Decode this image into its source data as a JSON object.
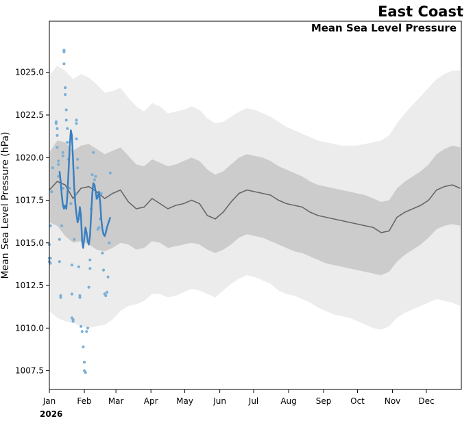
{
  "chart_data": {
    "type": "line",
    "title": "East Coast",
    "subtitle": "Mean Sea Level Pressure",
    "ylabel": "Mean Sea Level Pressure (hPa)",
    "xlabel": "",
    "year_label": "2026",
    "ylim": [
      1006.4,
      1028.0
    ],
    "xlim": [
      "2026-01-01",
      "2027-01-01"
    ],
    "grid": false,
    "y_ticks": [
      1007.5,
      1010.0,
      1012.5,
      1015.0,
      1017.5,
      1020.0,
      1022.5,
      1025.0
    ],
    "x_ticks": [
      {
        "label": "Jan",
        "date": "2026-01-01"
      },
      {
        "label": "Feb",
        "date": "2026-02-01"
      },
      {
        "label": "Mar",
        "date": "2026-03-01"
      },
      {
        "label": "Apr",
        "date": "2026-04-01"
      },
      {
        "label": "May",
        "date": "2026-05-01"
      },
      {
        "label": "Jun",
        "date": "2026-06-01"
      },
      {
        "label": "Jul",
        "date": "2026-07-01"
      },
      {
        "label": "Aug",
        "date": "2026-08-01"
      },
      {
        "label": "Sep",
        "date": "2026-09-01"
      },
      {
        "label": "Oct",
        "date": "2026-10-01"
      },
      {
        "label": "Nov",
        "date": "2026-11-01"
      },
      {
        "label": "Dec",
        "date": "2026-12-01"
      }
    ],
    "colors": {
      "outer_band": "#ececec",
      "inner_band": "#cccccc",
      "mean_line": "#666666",
      "current_line": "#3a7fc1",
      "points": "#7aafd6"
    },
    "climatology": {
      "dates": [
        "2026-01-01",
        "2026-01-08",
        "2026-01-15",
        "2026-01-22",
        "2026-01-29",
        "2026-02-05",
        "2026-02-12",
        "2026-02-19",
        "2026-02-26",
        "2026-03-05",
        "2026-03-12",
        "2026-03-19",
        "2026-03-26",
        "2026-04-02",
        "2026-04-09",
        "2026-04-16",
        "2026-04-23",
        "2026-04-30",
        "2026-05-07",
        "2026-05-14",
        "2026-05-21",
        "2026-05-28",
        "2026-06-04",
        "2026-06-11",
        "2026-06-18",
        "2026-06-25",
        "2026-07-02",
        "2026-07-09",
        "2026-07-16",
        "2026-07-23",
        "2026-07-30",
        "2026-08-06",
        "2026-08-13",
        "2026-08-20",
        "2026-08-27",
        "2026-09-03",
        "2026-09-10",
        "2026-09-17",
        "2026-09-24",
        "2026-10-01",
        "2026-10-08",
        "2026-10-15",
        "2026-10-22",
        "2026-10-29",
        "2026-11-05",
        "2026-11-12",
        "2026-11-19",
        "2026-11-26",
        "2026-12-03",
        "2026-12-10",
        "2026-12-17",
        "2026-12-24",
        "2026-12-31"
      ],
      "mean": [
        1018.1,
        1018.6,
        1018.4,
        1017.6,
        1018.2,
        1018.3,
        1018.0,
        1017.6,
        1017.9,
        1018.1,
        1017.4,
        1017.0,
        1017.1,
        1017.6,
        1017.3,
        1017.0,
        1017.2,
        1017.3,
        1017.5,
        1017.3,
        1016.6,
        1016.4,
        1016.8,
        1017.4,
        1017.9,
        1018.1,
        1018.0,
        1017.9,
        1017.8,
        1017.5,
        1017.3,
        1017.2,
        1017.1,
        1016.8,
        1016.6,
        1016.5,
        1016.4,
        1016.3,
        1016.2,
        1016.1,
        1016.0,
        1015.9,
        1015.6,
        1015.7,
        1016.5,
        1016.8,
        1017.0,
        1017.2,
        1017.5,
        1018.1,
        1018.3,
        1018.4,
        1018.2
      ],
      "inner_low": [
        1016.2,
        1016.0,
        1015.4,
        1015.0,
        1015.1,
        1014.9,
        1014.6,
        1014.5,
        1014.7,
        1015.0,
        1014.9,
        1014.6,
        1014.7,
        1015.1,
        1015.0,
        1014.7,
        1014.8,
        1014.9,
        1015.0,
        1014.9,
        1014.6,
        1014.4,
        1014.6,
        1014.9,
        1015.3,
        1015.5,
        1015.4,
        1015.3,
        1015.1,
        1014.9,
        1014.7,
        1014.5,
        1014.4,
        1014.2,
        1014.0,
        1013.8,
        1013.7,
        1013.6,
        1013.5,
        1013.4,
        1013.3,
        1013.2,
        1013.1,
        1013.3,
        1013.9,
        1014.3,
        1014.6,
        1014.9,
        1015.3,
        1015.8,
        1016.0,
        1016.1,
        1016.0
      ],
      "inner_high": [
        1020.3,
        1021.0,
        1020.9,
        1020.4,
        1020.7,
        1020.8,
        1020.5,
        1020.2,
        1020.4,
        1020.6,
        1020.1,
        1019.6,
        1019.5,
        1019.9,
        1019.7,
        1019.5,
        1019.6,
        1019.8,
        1020.0,
        1019.8,
        1019.3,
        1019.0,
        1019.2,
        1019.6,
        1020.0,
        1020.2,
        1020.1,
        1020.0,
        1019.8,
        1019.5,
        1019.3,
        1019.1,
        1018.9,
        1018.6,
        1018.4,
        1018.3,
        1018.2,
        1018.1,
        1018.0,
        1017.9,
        1017.8,
        1017.6,
        1017.4,
        1017.5,
        1018.2,
        1018.6,
        1018.9,
        1019.2,
        1019.6,
        1020.2,
        1020.5,
        1020.7,
        1020.6
      ],
      "outer_low": [
        1011.0,
        1010.6,
        1010.4,
        1010.3,
        1010.1,
        1010.0,
        1010.1,
        1010.2,
        1010.5,
        1011.0,
        1011.3,
        1011.4,
        1011.6,
        1012.0,
        1012.0,
        1011.8,
        1011.9,
        1012.1,
        1012.3,
        1012.2,
        1012.0,
        1011.8,
        1012.2,
        1012.6,
        1012.9,
        1013.1,
        1013.0,
        1012.8,
        1012.6,
        1012.2,
        1012.0,
        1011.9,
        1011.7,
        1011.5,
        1011.2,
        1011.0,
        1010.8,
        1010.7,
        1010.6,
        1010.4,
        1010.2,
        1010.0,
        1009.9,
        1010.1,
        1010.6,
        1010.9,
        1011.1,
        1011.3,
        1011.5,
        1011.7,
        1011.6,
        1011.5,
        1011.3
      ],
      "outer_high": [
        1024.8,
        1025.4,
        1025.1,
        1024.6,
        1024.9,
        1024.7,
        1024.3,
        1023.8,
        1023.9,
        1024.1,
        1023.5,
        1023.0,
        1022.7,
        1023.2,
        1023.0,
        1022.6,
        1022.7,
        1022.8,
        1023.0,
        1022.8,
        1022.3,
        1022.0,
        1022.1,
        1022.4,
        1022.7,
        1022.9,
        1022.8,
        1022.6,
        1022.4,
        1022.1,
        1021.8,
        1021.6,
        1021.4,
        1021.2,
        1021.0,
        1020.9,
        1020.8,
        1020.7,
        1020.7,
        1020.7,
        1020.8,
        1020.9,
        1021.0,
        1021.3,
        1022.0,
        1022.6,
        1023.1,
        1023.6,
        1024.1,
        1024.6,
        1024.9,
        1025.1,
        1025.1
      ]
    },
    "current_year": {
      "name": "",
      "dates": [
        "2026-01-10",
        "2026-01-11",
        "2026-01-12",
        "2026-01-13",
        "2026-01-14",
        "2026-01-15",
        "2026-01-16",
        "2026-01-17",
        "2026-01-18",
        "2026-01-19",
        "2026-01-20",
        "2026-01-21",
        "2026-01-22",
        "2026-01-23",
        "2026-01-24",
        "2026-01-25",
        "2026-01-26",
        "2026-01-27",
        "2026-01-28",
        "2026-01-29",
        "2026-01-30",
        "2026-01-31",
        "2026-02-01",
        "2026-02-02",
        "2026-02-03",
        "2026-02-04",
        "2026-02-05",
        "2026-02-06",
        "2026-02-07",
        "2026-02-08",
        "2026-02-09",
        "2026-02-10",
        "2026-02-11",
        "2026-02-12",
        "2026-02-13",
        "2026-02-14",
        "2026-02-15",
        "2026-02-16",
        "2026-02-17",
        "2026-02-18",
        "2026-02-19",
        "2026-02-20",
        "2026-02-21",
        "2026-02-22",
        "2026-02-23",
        "2026-02-24"
      ],
      "values": [
        1019.2,
        1018.6,
        1017.8,
        1017.2,
        1017.0,
        1017.2,
        1017.0,
        1017.8,
        1019.2,
        1020.6,
        1021.6,
        1021.3,
        1019.8,
        1018.3,
        1017.3,
        1016.7,
        1016.2,
        1016.4,
        1017.1,
        1016.6,
        1015.1,
        1014.7,
        1015.3,
        1015.9,
        1015.6,
        1015.1,
        1014.9,
        1015.4,
        1016.6,
        1017.9,
        1018.5,
        1018.4,
        1018.0,
        1017.6,
        1017.7,
        1018.0,
        1017.4,
        1016.4,
        1015.8,
        1015.5,
        1015.4,
        1015.6,
        1015.9,
        1016.1,
        1016.3,
        1016.5
      ]
    },
    "members": {
      "dates": [
        "2026-01-01",
        "2026-01-01",
        "2026-01-01",
        "2026-01-02",
        "2026-01-02",
        "2026-01-02",
        "2026-01-03",
        "2026-01-04",
        "2026-01-07",
        "2026-01-07",
        "2026-01-08",
        "2026-01-08",
        "2026-01-08",
        "2026-01-09",
        "2026-01-09",
        "2026-01-09",
        "2026-01-10",
        "2026-01-10",
        "2026-01-11",
        "2026-01-11",
        "2026-01-12",
        "2026-01-13",
        "2026-01-13",
        "2026-01-13",
        "2026-01-14",
        "2026-01-14",
        "2026-01-14",
        "2026-01-15",
        "2026-01-15",
        "2026-01-16",
        "2026-01-16",
        "2026-01-17",
        "2026-01-17",
        "2026-01-18",
        "2026-01-19",
        "2026-01-20",
        "2026-01-21",
        "2026-01-21",
        "2026-01-21",
        "2026-01-22",
        "2026-01-22",
        "2026-01-23",
        "2026-01-24",
        "2026-01-25",
        "2026-01-25",
        "2026-01-25",
        "2026-01-26",
        "2026-01-26",
        "2026-01-27",
        "2026-01-28",
        "2026-01-28",
        "2026-01-29",
        "2026-01-30",
        "2026-01-31",
        "2026-02-01",
        "2026-02-01",
        "2026-02-02",
        "2026-02-03",
        "2026-02-04",
        "2026-02-05",
        "2026-02-06",
        "2026-02-06",
        "2026-02-07",
        "2026-02-08",
        "2026-02-09",
        "2026-02-10",
        "2026-02-11",
        "2026-02-12",
        "2026-02-13",
        "2026-02-14",
        "2026-02-15",
        "2026-02-16",
        "2026-02-17",
        "2026-02-18",
        "2026-02-19",
        "2026-02-20",
        "2026-02-21",
        "2026-02-22",
        "2026-02-23",
        "2026-02-24"
      ],
      "values": [
        1014.9,
        1014.1,
        1013.9,
        1013.8,
        1014.1,
        1016.0,
        1018.0,
        1019.4,
        1022.1,
        1022.0,
        1021.7,
        1021.3,
        1020.6,
        1019.8,
        1019.6,
        1018.9,
        1015.2,
        1013.9,
        1011.9,
        1011.8,
        1016.0,
        1018.2,
        1020.3,
        1020.1,
        1026.3,
        1026.2,
        1025.5,
        1024.1,
        1023.7,
        1022.8,
        1022.2,
        1021.7,
        1020.9,
        1019.9,
        1018.2,
        1017.3,
        1013.7,
        1012.0,
        1010.6,
        1010.5,
        1010.4,
        1015.2,
        1017.9,
        1022.2,
        1022.0,
        1021.1,
        1019.9,
        1019.4,
        1013.6,
        1011.9,
        1011.8,
        1010.1,
        1009.8,
        1008.9,
        1008.0,
        1007.5,
        1007.4,
        1009.8,
        1010.0,
        1012.4,
        1013.5,
        1014.0,
        1017.0,
        1019.0,
        1020.3,
        1018.7,
        1018.9,
        1017.6,
        1015.8,
        1015.9,
        1016.4,
        1017.9,
        1014.4,
        1013.4,
        1012.0,
        1011.9,
        1012.1,
        1013.0,
        1015.0,
        1019.1
      ]
    }
  }
}
